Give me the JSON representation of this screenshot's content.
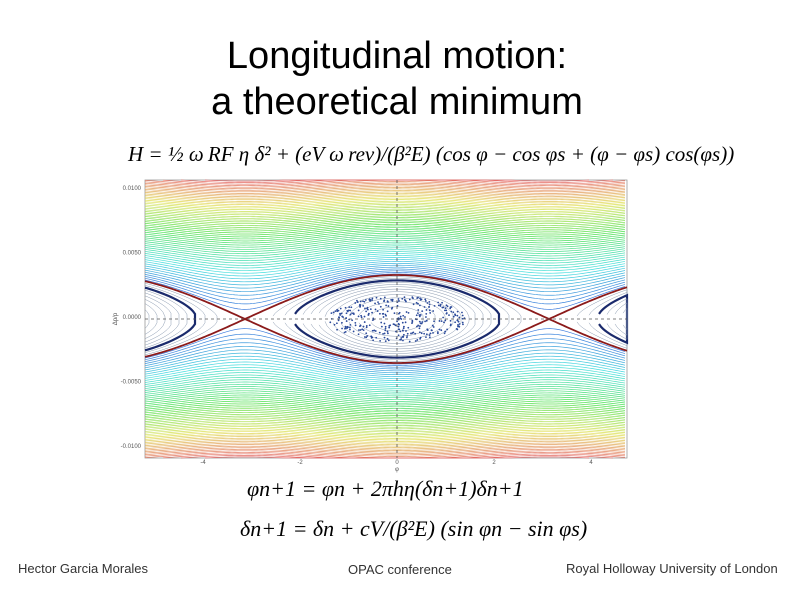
{
  "header": {
    "title_line1": "Longitudinal motion:",
    "title_line2": "a theoretical minimum"
  },
  "equations": {
    "hamiltonian": "H = ½ ω RF η δ² + (eV ω rev)/(β²E) (cos φ − cos φs + (φ − φs) cos(φs))",
    "map_phi": "φn+1 = φn + 2πhη(δn+1)δn+1",
    "map_delta": "δn+1 = δn + cV/(β²E) (sin φn − sin φs)"
  },
  "plot": {
    "y_label": "Δp/p",
    "x_label": "φ",
    "y_tick_labels": [
      "0.0100",
      "0.0050",
      "0.0000",
      "-0.0050",
      "-0.0100"
    ],
    "x_tick_labels": [
      "-4",
      "-2",
      "0",
      "2",
      "4"
    ]
  },
  "footer": {
    "author": "Hector Garcia Morales",
    "event": "OPAC conference",
    "affiliation": "Royal Holloway University of London"
  }
}
